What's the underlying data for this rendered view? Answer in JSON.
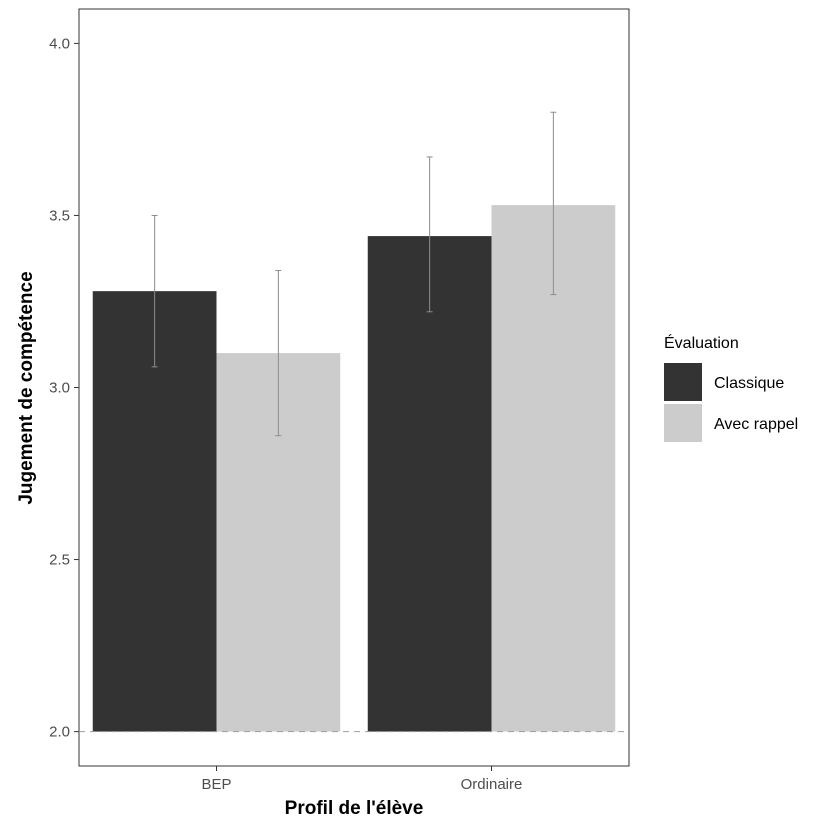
{
  "chart_data": {
    "type": "bar",
    "categories": [
      "BEP",
      "Ordinaire"
    ],
    "series": [
      {
        "name": "Classique",
        "values": [
          3.28,
          3.44
        ],
        "error_low": [
          3.06,
          3.22
        ],
        "error_high": [
          3.5,
          3.67
        ],
        "color": "#333333"
      },
      {
        "name": "Avec rappel",
        "values": [
          3.1,
          3.53
        ],
        "error_low": [
          2.86,
          3.27
        ],
        "error_high": [
          3.34,
          3.8
        ],
        "color": "#cccccc"
      }
    ],
    "xlabel": "Profil de l'élève",
    "ylabel": "Jugement de compétence",
    "ylim": [
      1.9,
      4.1
    ],
    "yticks": [
      2.0,
      2.5,
      3.0,
      3.5,
      4.0
    ],
    "ytick_labels": [
      "2.0",
      "2.5",
      "3.0",
      "3.5",
      "4.0"
    ],
    "reference_line": 2.0,
    "legend_title": "Évaluation",
    "legend_position": "right",
    "grid": false
  }
}
